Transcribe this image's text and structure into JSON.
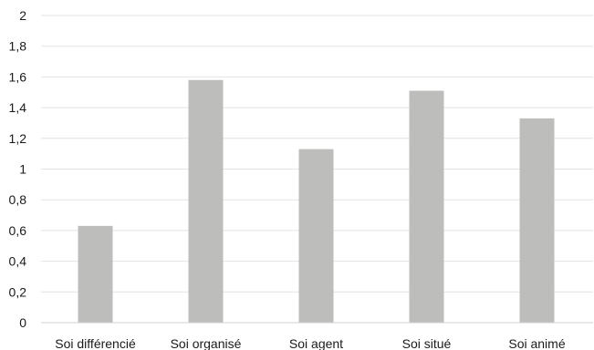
{
  "chart_data": {
    "type": "bar",
    "categories": [
      "Soi différencié",
      "Soi organisé",
      "Soi agent",
      "Soi situé",
      "Soi animé"
    ],
    "values": [
      0.63,
      1.58,
      1.13,
      1.51,
      1.33
    ],
    "yticks": [
      "0",
      "0,2",
      "0,4",
      "0,6",
      "0,8",
      "1",
      "1,2",
      "1,4",
      "1,6",
      "1,8",
      "2"
    ],
    "ylim": [
      0,
      2
    ],
    "grid": true,
    "bar_color": "#bdbdbc",
    "title": "",
    "xlabel": "",
    "ylabel": ""
  }
}
